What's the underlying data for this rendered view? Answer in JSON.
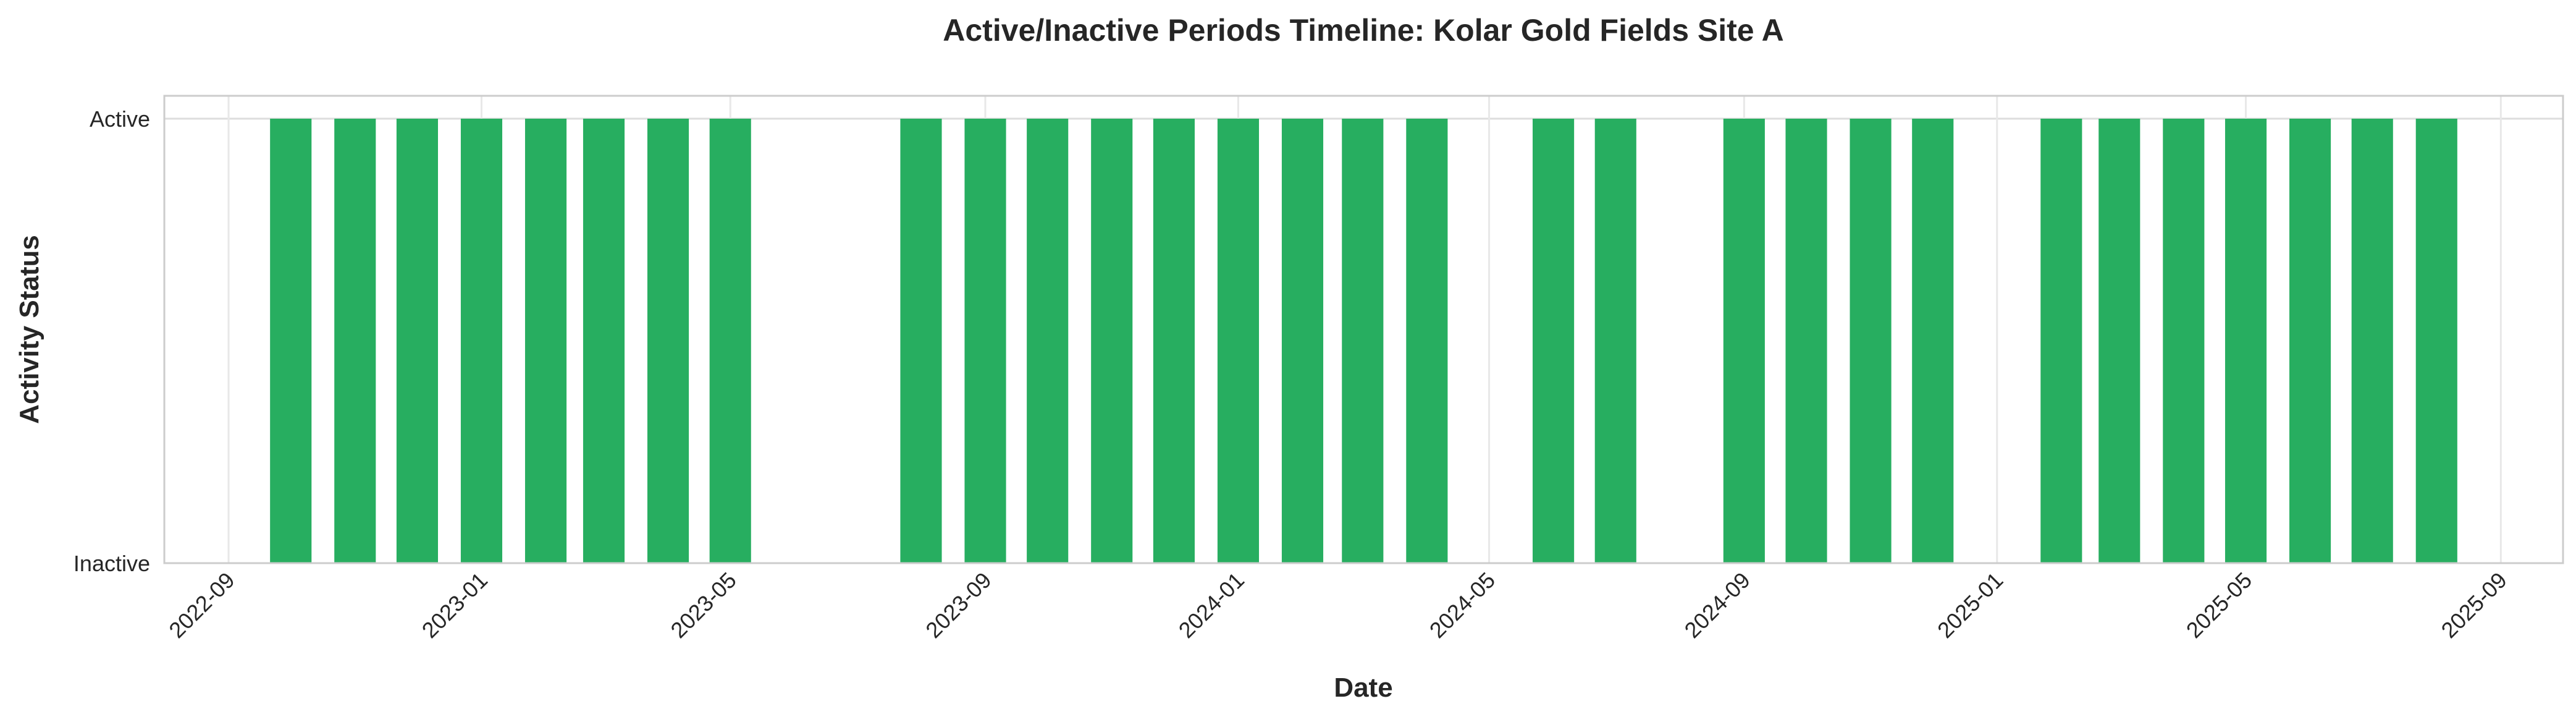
{
  "chart_data": {
    "type": "bar",
    "title": "Active/Inactive Periods Timeline: Kolar Gold Fields Site A",
    "xlabel": "Date",
    "ylabel": "Activity Status",
    "y_ticks": [
      "Inactive",
      "Active"
    ],
    "ylim": [
      0,
      1
    ],
    "xlim": [
      "2022-08-01",
      "2025-10-01"
    ],
    "x_ticks": [
      "2022-09",
      "2023-01",
      "2023-05",
      "2023-09",
      "2024-01",
      "2024-05",
      "2024-09",
      "2025-01",
      "2025-05",
      "2025-09"
    ],
    "grid": true,
    "legend": "none",
    "bar_color": "#27ae60",
    "x": [
      "2022-10-01",
      "2022-11-01",
      "2022-12-01",
      "2023-01-01",
      "2023-02-01",
      "2023-03-01",
      "2023-04-01",
      "2023-05-01",
      "2023-06-01",
      "2023-07-01",
      "2023-08-01",
      "2023-09-01",
      "2023-10-01",
      "2023-11-01",
      "2023-12-01",
      "2024-01-01",
      "2024-02-01",
      "2024-03-01",
      "2024-04-01",
      "2024-05-01",
      "2024-06-01",
      "2024-07-01",
      "2024-08-01",
      "2024-09-01",
      "2024-10-01",
      "2024-11-01",
      "2024-12-01",
      "2025-01-01",
      "2025-02-01",
      "2025-03-01",
      "2025-04-01",
      "2025-05-01",
      "2025-06-01",
      "2025-07-01",
      "2025-08-01"
    ],
    "values": [
      1,
      1,
      1,
      1,
      1,
      1,
      1,
      1,
      0,
      0,
      1,
      1,
      1,
      1,
      1,
      1,
      1,
      1,
      1,
      0,
      1,
      1,
      0,
      1,
      1,
      1,
      1,
      0,
      1,
      1,
      1,
      1,
      1,
      1,
      1
    ]
  }
}
